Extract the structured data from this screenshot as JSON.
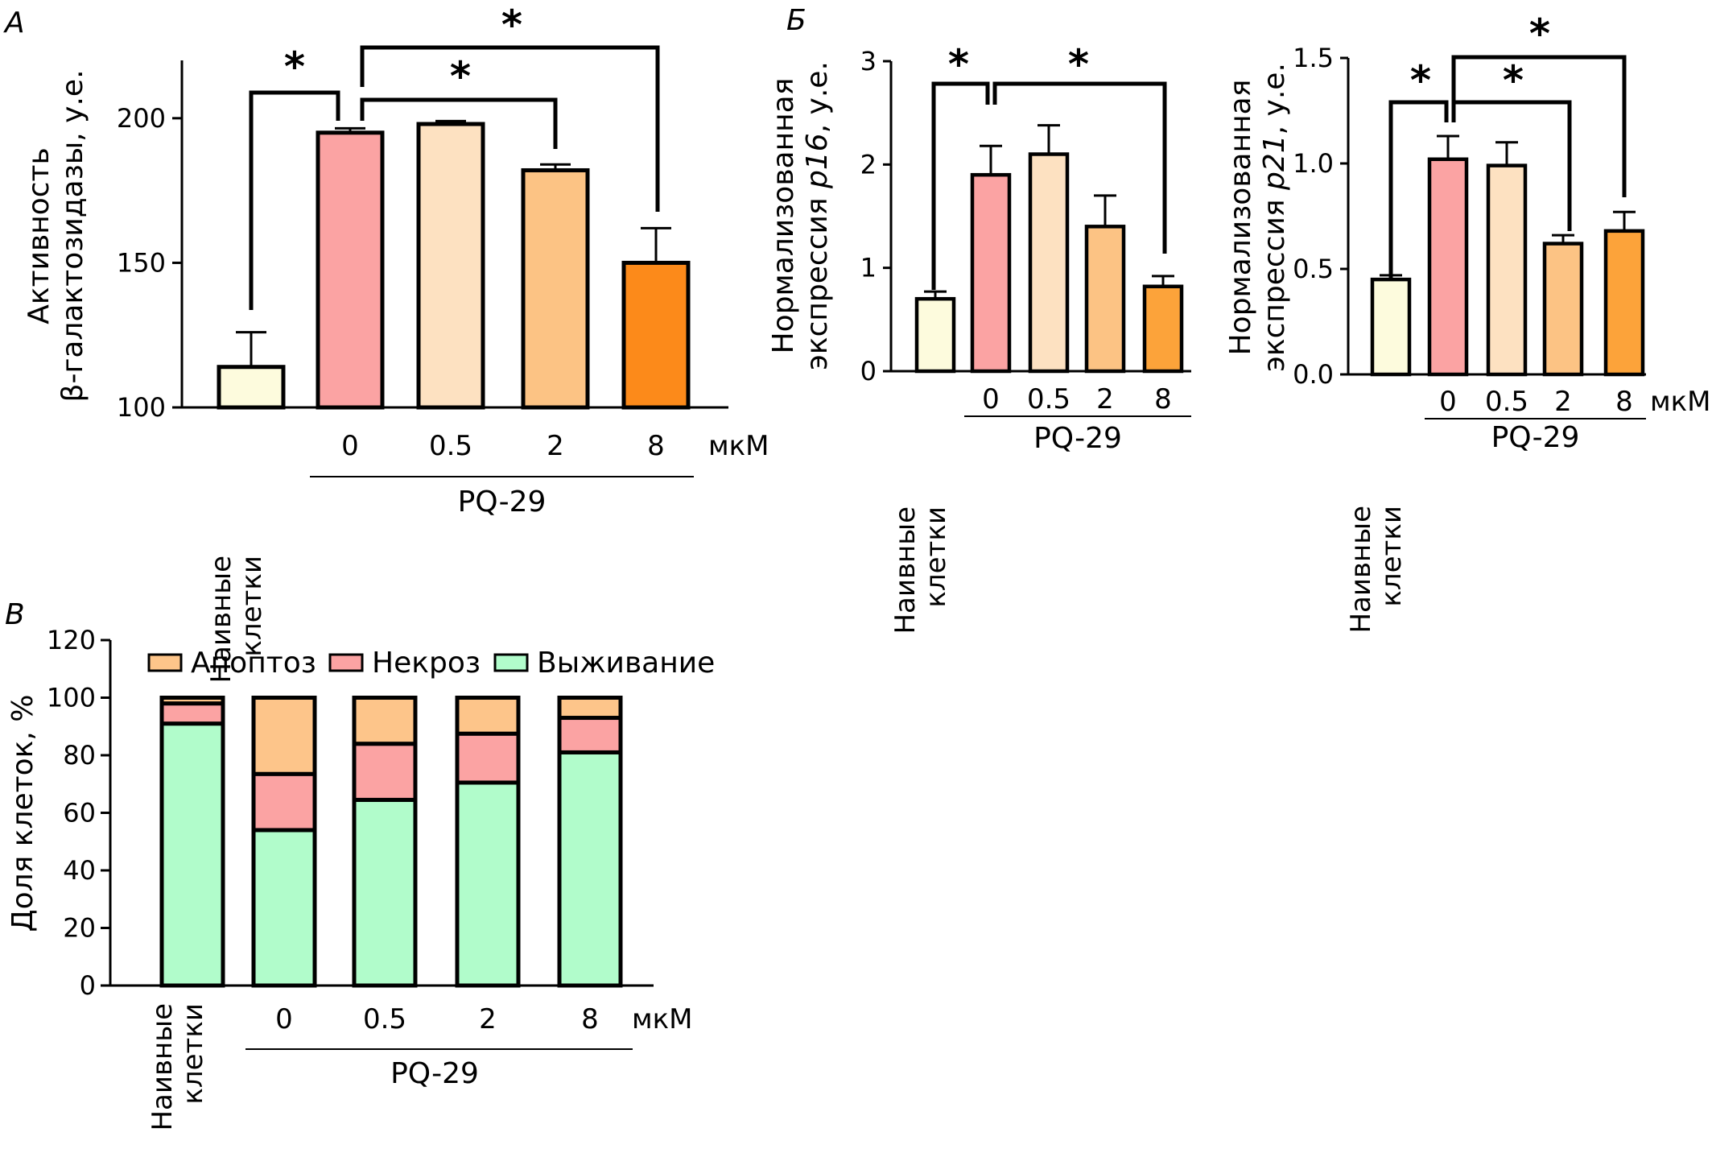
{
  "chart_data": [
    {
      "panel": "А",
      "type": "bar",
      "categories": [
        "Наивные клетки",
        "0",
        "0.5",
        "2",
        "8"
      ],
      "values": [
        114,
        195,
        198,
        182,
        150
      ],
      "errors": [
        12,
        1.5,
        1,
        2,
        12
      ],
      "colors": [
        "#fdfbdd",
        "#fba3a3",
        "#fde1c1",
        "#fcc384",
        "#fc8a1a"
      ],
      "ylabel_line1": "Активность",
      "ylabel_line2": "β-галактозидазы, у.е.",
      "ylim": [
        100,
        220
      ],
      "yticks": [
        100,
        150,
        200
      ],
      "group_label": "PQ-29",
      "unit": "мкМ",
      "significance": [
        "*",
        "*",
        "*"
      ]
    },
    {
      "panel": "Б",
      "type": "bar",
      "categories": [
        "Наивные клетки",
        "0",
        "0.5",
        "2",
        "8"
      ],
      "values": [
        0.7,
        1.9,
        2.1,
        1.4,
        0.82
      ],
      "errors": [
        0.07,
        0.28,
        0.28,
        0.3,
        0.1
      ],
      "colors": [
        "#fdfbdd",
        "#fba3a3",
        "#fde1c1",
        "#fcc384",
        "#fca33a"
      ],
      "ylabel_line1": "Нормализованная",
      "ylabel_line2_prefix": "экспрессия ",
      "ylabel_line2_gene": "p16",
      "ylabel_line2_suffix": ", у.е.",
      "ylim": [
        0,
        3
      ],
      "yticks": [
        0,
        1,
        2,
        3
      ],
      "group_label": "PQ-29",
      "significance": [
        "*",
        "*"
      ]
    },
    {
      "panel": "",
      "type": "bar",
      "categories": [
        "Наивные клетки",
        "0",
        "0.5",
        "2",
        "8"
      ],
      "values": [
        0.45,
        1.02,
        0.99,
        0.62,
        0.68
      ],
      "errors": [
        0.02,
        0.11,
        0.11,
        0.04,
        0.09
      ],
      "colors": [
        "#fdfbdd",
        "#fba3a3",
        "#fde1c1",
        "#fcc384",
        "#fca33a"
      ],
      "ylabel_line1": "Нормализованная",
      "ylabel_line2_prefix": "экспрессия ",
      "ylabel_line2_gene": "p21",
      "ylabel_line2_suffix": ", у.е.",
      "ylim": [
        0,
        1.5
      ],
      "yticks": [
        0.0,
        0.5,
        1.0,
        1.5
      ],
      "group_label": "PQ-29",
      "unit": "мкМ",
      "significance": [
        "*",
        "*",
        "*"
      ]
    },
    {
      "panel": "В",
      "type": "bar",
      "stacked": true,
      "categories": [
        "Наивные клетки",
        "0",
        "0.5",
        "2",
        "8"
      ],
      "series": [
        {
          "name": "Выживание",
          "color": "#b1fccb",
          "values": [
            91,
            54,
            64.5,
            70.5,
            81
          ]
        },
        {
          "name": "Некроз",
          "color": "#fba3a3",
          "values": [
            7,
            19.5,
            19.5,
            17,
            12
          ]
        },
        {
          "name": "Апоптоз",
          "color": "#fdc58a",
          "values": [
            2,
            26.5,
            16,
            12.5,
            7
          ]
        }
      ],
      "legend_order": [
        "Апоптоз",
        "Некроз",
        "Выживание"
      ],
      "ylabel": "Доля клеток, %",
      "ylim": [
        0,
        120
      ],
      "yticks": [
        0,
        20,
        40,
        60,
        80,
        100,
        120
      ],
      "group_label": "PQ-29",
      "unit": "мкМ"
    }
  ]
}
